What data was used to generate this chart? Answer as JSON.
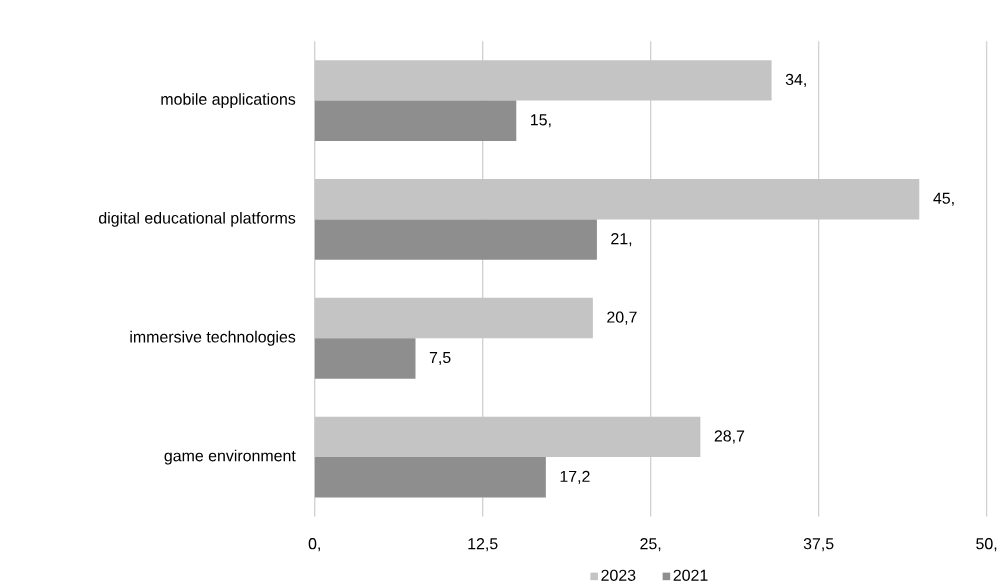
{
  "chart_data": {
    "type": "bar",
    "orientation": "horizontal",
    "categories": [
      "mobile applications",
      "digital educational platforms",
      "immersive technologies",
      "game environment"
    ],
    "series": [
      {
        "name": "2023",
        "color": "#c4c4c4",
        "values": [
          34,
          45,
          20.7,
          28.7
        ],
        "value_labels": [
          "34,",
          "45,",
          "20,7",
          "28,7"
        ]
      },
      {
        "name": "2021",
        "color": "#8e8e8e",
        "values": [
          15,
          21,
          7.5,
          17.2
        ],
        "value_labels": [
          "15,",
          "21,",
          "7,5",
          "17,2"
        ]
      }
    ],
    "xlim": [
      0,
      50
    ],
    "xticks": [
      {
        "value": 0,
        "label": "0,"
      },
      {
        "value": 12.5,
        "label": "12,5"
      },
      {
        "value": 25,
        "label": "25,"
      },
      {
        "value": 37.5,
        "label": "37,5"
      },
      {
        "value": 50,
        "label": "50,"
      }
    ],
    "grid": "x",
    "legend": "bottom"
  }
}
